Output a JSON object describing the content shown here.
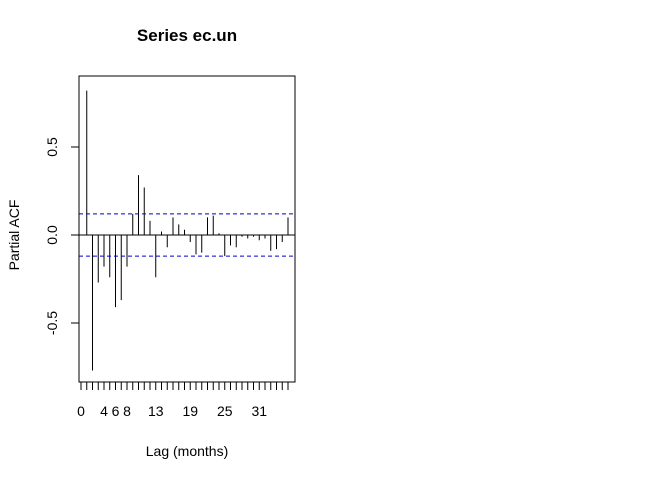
{
  "chart_data": {
    "type": "bar",
    "title": "Series  ec.un",
    "xlabel": "Lag (months)",
    "ylabel": "Partial ACF",
    "xlim": [
      0,
      36
    ],
    "ylim": [
      -0.82,
      0.9
    ],
    "x_tick_labels": [
      "0",
      "4",
      "6",
      "8",
      "13",
      "19",
      "25",
      "31"
    ],
    "x_tick_values": [
      0,
      4,
      6,
      8,
      13,
      19,
      25,
      31
    ],
    "x_minor_tick_count": 37,
    "y_ticks": [
      -0.5,
      0.0,
      0.5
    ],
    "y_tick_labels": [
      "-0.5",
      "0.0",
      "0.5"
    ],
    "confidence_bound": 0.12,
    "bound_color": "#0000cc",
    "series": [
      {
        "lags": [
          1,
          2,
          3,
          4,
          5,
          6,
          7,
          8,
          9,
          10,
          11,
          12,
          13,
          14,
          15,
          16,
          17,
          18,
          19,
          20,
          21,
          22,
          23,
          24,
          25,
          26,
          27,
          28,
          29,
          30,
          31,
          32,
          33,
          34,
          35,
          36
        ],
        "values": [
          0.82,
          -0.77,
          -0.27,
          -0.18,
          -0.24,
          -0.41,
          -0.37,
          -0.18,
          0.12,
          0.34,
          0.27,
          0.08,
          -0.24,
          0.02,
          -0.07,
          0.1,
          0.06,
          0.03,
          -0.04,
          -0.11,
          -0.1,
          0.1,
          0.11,
          0.01,
          -0.12,
          -0.06,
          -0.07,
          -0.01,
          -0.02,
          -0.01,
          -0.03,
          -0.02,
          -0.09,
          -0.08,
          -0.04,
          0.1
        ]
      }
    ],
    "grid": false,
    "legend": "none"
  }
}
